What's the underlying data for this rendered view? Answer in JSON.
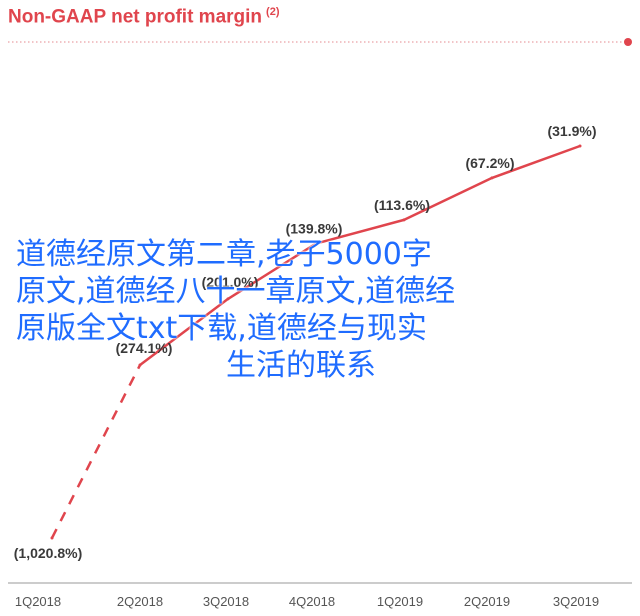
{
  "title": "Non-GAAP net profit margin",
  "title_note": "(2)",
  "overlay_lines": [
    "道德经原文第二章,老子5000字",
    "原文,道德经八十一章原文,道德经",
    "原版全文txt下载,道德经与现实",
    "生活的联系"
  ],
  "colors": {
    "accent": "#e0454d",
    "overlay": "#1f6cff",
    "axis": "#555555"
  },
  "chart_data": {
    "type": "line",
    "title": "Non-GAAP net profit margin",
    "categories": [
      "1Q2018",
      "2Q2018",
      "3Q2018",
      "4Q2018",
      "1Q2019",
      "2Q2019",
      "3Q2019"
    ],
    "values": [
      -1020.8,
      -274.1,
      -201.0,
      -139.8,
      -113.6,
      -67.2,
      -31.9
    ],
    "data_labels": [
      "(1,020.8%)",
      "(274.1%)",
      "(201.0%)",
      "(139.8%)",
      "(113.6%)",
      "(67.2%)",
      "(31.9%)"
    ],
    "dashed_segment": [
      0,
      1
    ],
    "grid": false,
    "legend": "none"
  }
}
